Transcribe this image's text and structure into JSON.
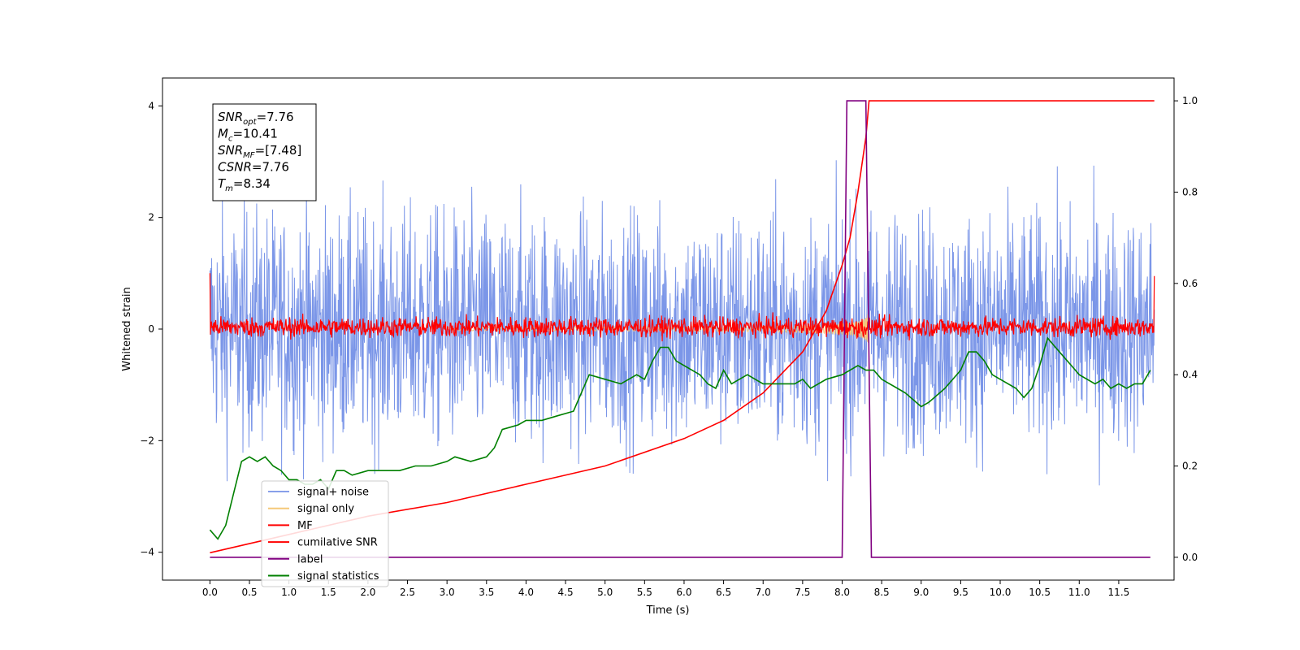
{
  "chart_data": {
    "type": "line",
    "xlabel": "Time (s)",
    "ylabel": "Whitened strain",
    "xlim": [
      -0.6,
      12.2
    ],
    "ylim": [
      -4.5,
      4.5
    ],
    "y2lim": [
      -0.05,
      1.05
    ],
    "xticks": [
      "0.0",
      "0.5",
      "1.0",
      "1.5",
      "2.0",
      "2.5",
      "3.0",
      "3.5",
      "4.0",
      "4.5",
      "5.0",
      "5.5",
      "6.0",
      "6.5",
      "7.0",
      "7.5",
      "8.0",
      "8.5",
      "9.0",
      "9.5",
      "10.0",
      "10.5",
      "11.0",
      "11.5"
    ],
    "yticks": [
      "4",
      "2",
      "0",
      "−2",
      "−4"
    ],
    "y2ticks": [
      "0.0",
      "0.2",
      "0.4",
      "0.6",
      "0.8",
      "1.0"
    ],
    "info_box": [
      {
        "sym": "SNR",
        "sub": "opt",
        "val": "=7.76"
      },
      {
        "sym": "M",
        "sub": "c",
        "val": "=10.41"
      },
      {
        "sym": "SNR",
        "sub": "MF",
        "val": "=[7.48]"
      },
      {
        "sym": "CSNR",
        "sub": "",
        "val": "=7.76"
      },
      {
        "sym": "T",
        "sub": "m",
        "val": "=8.34"
      }
    ],
    "legend_position": "lower-left",
    "series": [
      {
        "name": "signal+ noise",
        "color": "#7b96e8",
        "axis": "left",
        "description": "whitened noise, amplitude roughly ±2.5, peaks to ±4"
      },
      {
        "name": "signal only",
        "color": "#f5c878",
        "axis": "left",
        "description": "chirp growing from ~0 to ~0.8 amplitude, ending at 8.34 s"
      },
      {
        "name": "MF",
        "color": "#ff0000",
        "axis": "left",
        "description": "matched-filter output, amplitude ~±0.2"
      },
      {
        "name": "cumilative SNR",
        "color": "#ff0000",
        "axis": "right",
        "points": [
          [
            0.0,
            0.01
          ],
          [
            1.0,
            0.05
          ],
          [
            2.0,
            0.09
          ],
          [
            3.0,
            0.12
          ],
          [
            4.0,
            0.16
          ],
          [
            5.0,
            0.2
          ],
          [
            6.0,
            0.26
          ],
          [
            6.5,
            0.3
          ],
          [
            7.0,
            0.36
          ],
          [
            7.5,
            0.45
          ],
          [
            7.8,
            0.54
          ],
          [
            8.0,
            0.64
          ],
          [
            8.1,
            0.7
          ],
          [
            8.2,
            0.8
          ],
          [
            8.3,
            0.92
          ],
          [
            8.34,
            1.0
          ],
          [
            11.95,
            1.0
          ]
        ]
      },
      {
        "name": "label",
        "color": "#800080",
        "axis": "right",
        "points": [
          [
            0.0,
            0.0
          ],
          [
            8.0,
            0.0
          ],
          [
            8.06,
            1.0
          ],
          [
            8.3,
            1.0
          ],
          [
            8.37,
            0.0
          ],
          [
            11.9,
            0.0
          ]
        ]
      },
      {
        "name": "signal statistics",
        "color": "#008000",
        "axis": "right",
        "points": [
          [
            0.0,
            0.06
          ],
          [
            0.1,
            0.04
          ],
          [
            0.2,
            0.07
          ],
          [
            0.3,
            0.14
          ],
          [
            0.4,
            0.21
          ],
          [
            0.5,
            0.22
          ],
          [
            0.6,
            0.21
          ],
          [
            0.7,
            0.22
          ],
          [
            0.8,
            0.2
          ],
          [
            0.9,
            0.19
          ],
          [
            1.0,
            0.17
          ],
          [
            1.1,
            0.17
          ],
          [
            1.2,
            0.16
          ],
          [
            1.3,
            0.16
          ],
          [
            1.4,
            0.17
          ],
          [
            1.5,
            0.15
          ],
          [
            1.6,
            0.19
          ],
          [
            1.7,
            0.19
          ],
          [
            1.8,
            0.18
          ],
          [
            2.0,
            0.19
          ],
          [
            2.2,
            0.19
          ],
          [
            2.4,
            0.19
          ],
          [
            2.6,
            0.2
          ],
          [
            2.8,
            0.2
          ],
          [
            3.0,
            0.21
          ],
          [
            3.1,
            0.22
          ],
          [
            3.3,
            0.21
          ],
          [
            3.5,
            0.22
          ],
          [
            3.6,
            0.24
          ],
          [
            3.7,
            0.28
          ],
          [
            3.9,
            0.29
          ],
          [
            4.0,
            0.3
          ],
          [
            4.2,
            0.3
          ],
          [
            4.4,
            0.31
          ],
          [
            4.6,
            0.32
          ],
          [
            4.8,
            0.4
          ],
          [
            5.0,
            0.39
          ],
          [
            5.2,
            0.38
          ],
          [
            5.4,
            0.4
          ],
          [
            5.5,
            0.39
          ],
          [
            5.6,
            0.43
          ],
          [
            5.7,
            0.46
          ],
          [
            5.8,
            0.46
          ],
          [
            5.9,
            0.43
          ],
          [
            6.0,
            0.42
          ],
          [
            6.1,
            0.41
          ],
          [
            6.2,
            0.4
          ],
          [
            6.3,
            0.38
          ],
          [
            6.4,
            0.37
          ],
          [
            6.5,
            0.41
          ],
          [
            6.6,
            0.38
          ],
          [
            6.8,
            0.4
          ],
          [
            7.0,
            0.38
          ],
          [
            7.2,
            0.38
          ],
          [
            7.4,
            0.38
          ],
          [
            7.5,
            0.39
          ],
          [
            7.6,
            0.37
          ],
          [
            7.8,
            0.39
          ],
          [
            8.0,
            0.4
          ],
          [
            8.1,
            0.41
          ],
          [
            8.2,
            0.42
          ],
          [
            8.3,
            0.41
          ],
          [
            8.4,
            0.41
          ],
          [
            8.5,
            0.39
          ],
          [
            8.7,
            0.37
          ],
          [
            8.8,
            0.36
          ],
          [
            9.0,
            0.33
          ],
          [
            9.1,
            0.34
          ],
          [
            9.3,
            0.37
          ],
          [
            9.5,
            0.41
          ],
          [
            9.6,
            0.45
          ],
          [
            9.7,
            0.45
          ],
          [
            9.8,
            0.43
          ],
          [
            9.9,
            0.4
          ],
          [
            10.0,
            0.39
          ],
          [
            10.2,
            0.37
          ],
          [
            10.3,
            0.35
          ],
          [
            10.4,
            0.37
          ],
          [
            10.5,
            0.42
          ],
          [
            10.6,
            0.48
          ],
          [
            10.7,
            0.46
          ],
          [
            10.8,
            0.44
          ],
          [
            10.9,
            0.42
          ],
          [
            11.0,
            0.4
          ],
          [
            11.2,
            0.38
          ],
          [
            11.3,
            0.39
          ],
          [
            11.4,
            0.37
          ],
          [
            11.5,
            0.38
          ],
          [
            11.6,
            0.37
          ],
          [
            11.7,
            0.38
          ],
          [
            11.8,
            0.38
          ],
          [
            11.9,
            0.41
          ]
        ]
      }
    ]
  }
}
